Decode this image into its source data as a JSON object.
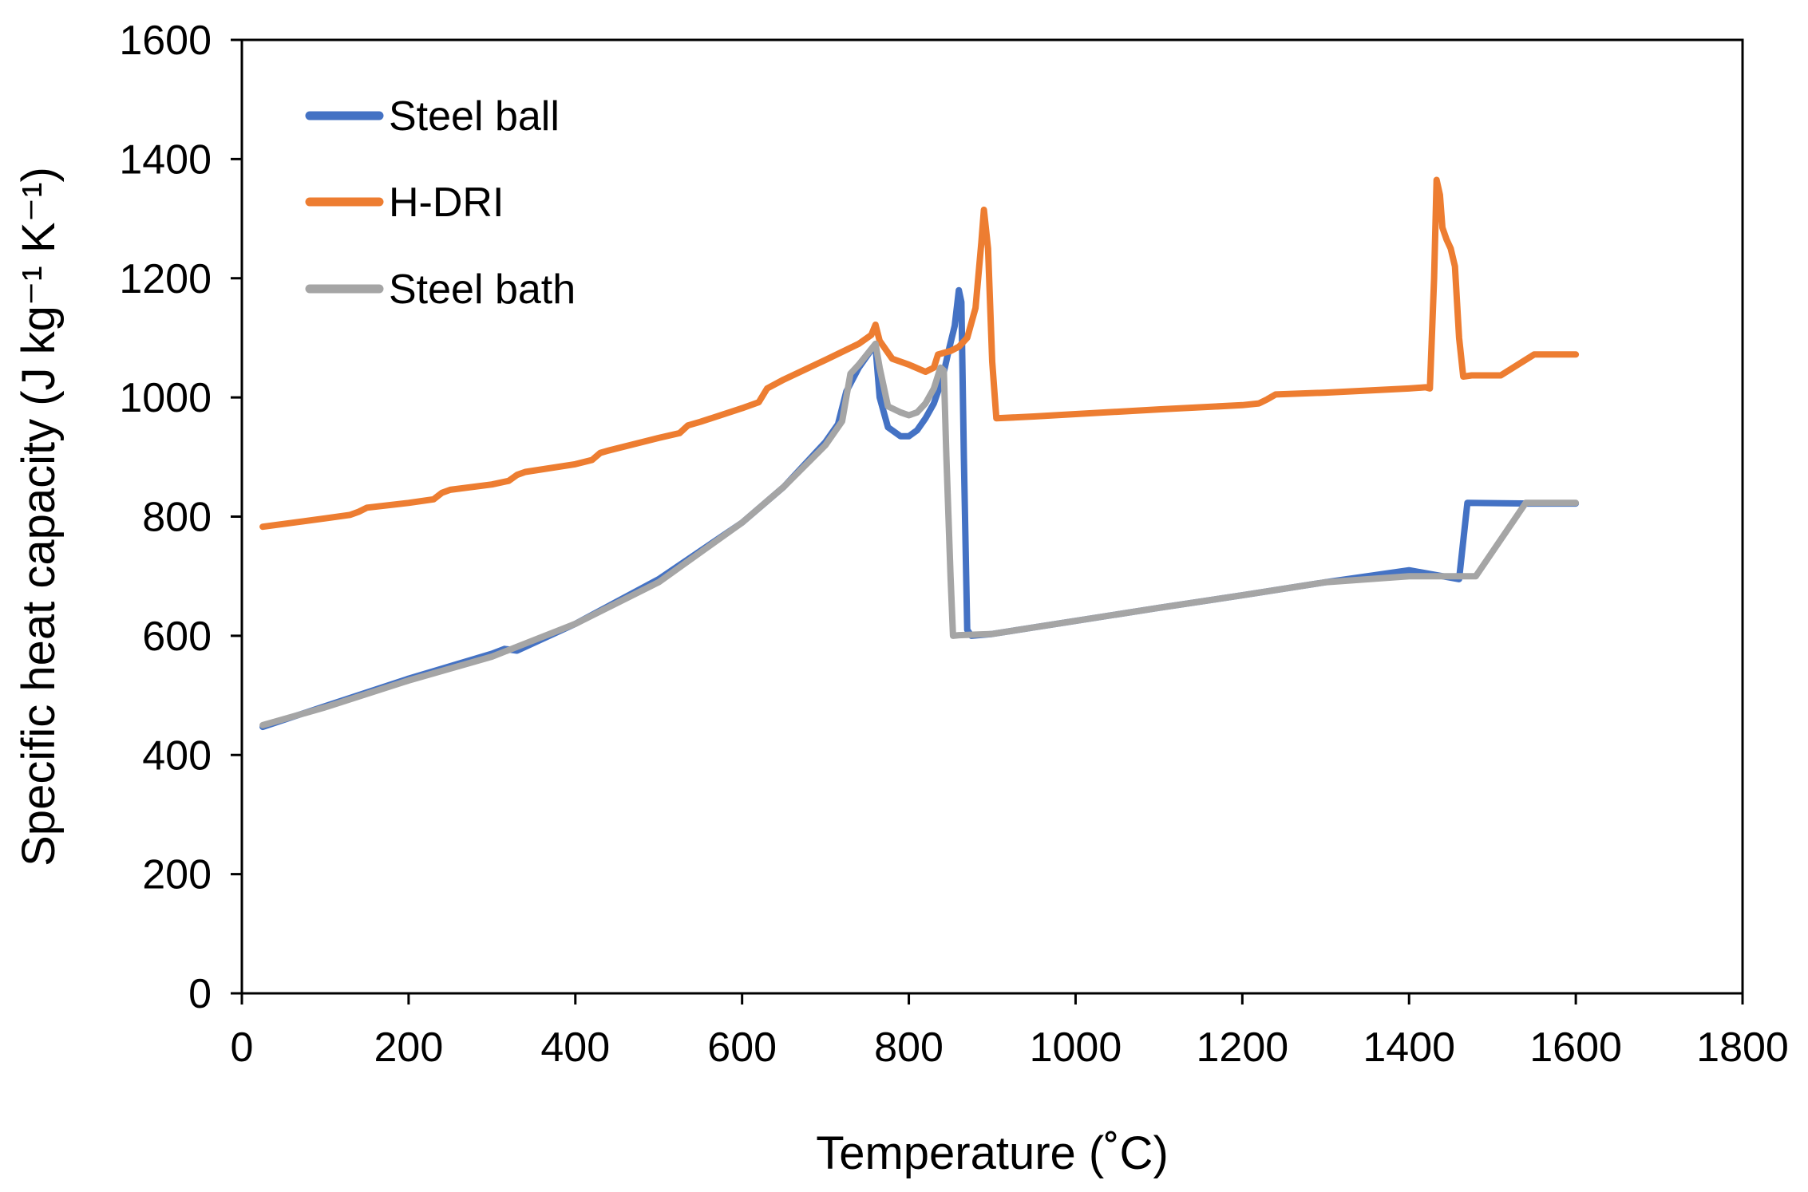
{
  "chart_data": {
    "type": "line",
    "title": "",
    "xlabel": "Temperature (˚C)",
    "ylabel": "Specific heat capacity (J kg⁻¹ K⁻¹)",
    "xlim": [
      0,
      1800
    ],
    "ylim": [
      0,
      1600
    ],
    "xticks": [
      0,
      200,
      400,
      600,
      800,
      1000,
      1200,
      1400,
      1600,
      1800
    ],
    "yticks": [
      0,
      200,
      400,
      600,
      800,
      1000,
      1200,
      1400,
      1600
    ],
    "grid": false,
    "legend_position": "top-left",
    "series": [
      {
        "name": "Steel ball",
        "color": "#4472C4",
        "x": [
          25,
          100,
          200,
          300,
          315,
          330,
          400,
          500,
          600,
          650,
          700,
          715,
          725,
          740,
          755,
          760,
          765,
          775,
          790,
          800,
          810,
          820,
          830,
          840,
          848,
          855,
          860,
          863,
          866,
          870,
          875,
          900,
          1000,
          1100,
          1200,
          1300,
          1400,
          1460,
          1470,
          1540,
          1550,
          1600
        ],
        "y": [
          447,
          482,
          528,
          570,
          578,
          575,
          620,
          695,
          790,
          850,
          925,
          955,
          1010,
          1050,
          1080,
          1085,
          1000,
          950,
          935,
          935,
          945,
          965,
          990,
          1030,
          1080,
          1120,
          1180,
          1160,
          900,
          610,
          600,
          603,
          625,
          647,
          668,
          690,
          710,
          695,
          823,
          822,
          822,
          822
        ]
      },
      {
        "name": "H-DRI",
        "color": "#ED7D31",
        "x": [
          25,
          100,
          130,
          140,
          150,
          200,
          230,
          240,
          250,
          300,
          320,
          330,
          340,
          400,
          420,
          430,
          440,
          500,
          525,
          535,
          550,
          600,
          620,
          630,
          650,
          700,
          740,
          755,
          760,
          765,
          780,
          800,
          820,
          830,
          835,
          850,
          860,
          870,
          880,
          887,
          890,
          895,
          900,
          905,
          950,
          1000,
          1100,
          1200,
          1220,
          1230,
          1240,
          1300,
          1400,
          1420,
          1425,
          1430,
          1433,
          1437,
          1440,
          1445,
          1450,
          1455,
          1460,
          1465,
          1475,
          1490,
          1510,
          1550,
          1600
        ],
        "y": [
          783,
          797,
          803,
          808,
          815,
          823,
          829,
          840,
          845,
          854,
          860,
          870,
          875,
          888,
          895,
          907,
          911,
          932,
          940,
          953,
          959,
          982,
          992,
          1015,
          1030,
          1063,
          1090,
          1105,
          1122,
          1095,
          1065,
          1055,
          1043,
          1050,
          1072,
          1078,
          1085,
          1100,
          1150,
          1260,
          1315,
          1250,
          1060,
          965,
          968,
          972,
          980,
          987,
          990,
          997,
          1005,
          1008,
          1015,
          1017,
          1015,
          1200,
          1365,
          1340,
          1285,
          1265,
          1250,
          1220,
          1100,
          1035,
          1037,
          1037,
          1037,
          1072,
          1072
        ]
      },
      {
        "name": "Steel bath",
        "color": "#A5A5A5",
        "x": [
          25,
          100,
          200,
          300,
          400,
          500,
          600,
          650,
          700,
          720,
          730,
          740,
          760,
          765,
          775,
          790,
          800,
          810,
          820,
          830,
          838,
          842,
          845,
          850,
          853,
          860,
          900,
          1000,
          1100,
          1200,
          1300,
          1400,
          1470,
          1480,
          1540,
          1550,
          1600
        ],
        "y": [
          450,
          480,
          525,
          565,
          620,
          690,
          790,
          850,
          920,
          960,
          1040,
          1055,
          1090,
          1050,
          985,
          975,
          970,
          975,
          990,
          1015,
          1050,
          1045,
          900,
          700,
          600,
          601,
          603,
          625,
          647,
          668,
          690,
          700,
          700,
          700,
          823,
          823,
          823
        ]
      }
    ]
  }
}
